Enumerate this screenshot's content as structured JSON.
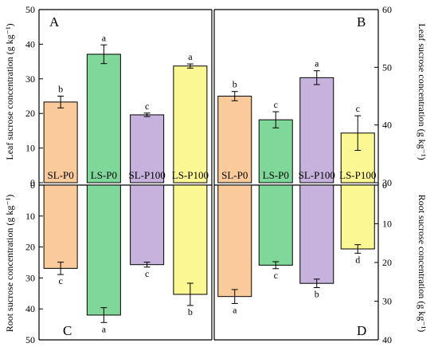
{
  "chart_data": {
    "type": "bar",
    "categories": [
      "SL-P0",
      "LS-P0",
      "SL-P100",
      "LS-P100"
    ],
    "colors": [
      "#FACA9A",
      "#7FD89A",
      "#C6B2DC",
      "#FBF792"
    ],
    "panels": [
      {
        "id": "A",
        "label": "A",
        "position": "top-left",
        "measure": "leaf",
        "axis_side": "left",
        "ylabel": "Leaf sucrose concentration (g kg⁻¹)",
        "ylim": [
          0,
          50
        ],
        "ticks": [
          0,
          10,
          20,
          30,
          40,
          50
        ],
        "values": [
          23.3,
          37.1,
          19.6,
          33.7
        ],
        "errors": [
          1.7,
          2.7,
          0.5,
          0.6
        ],
        "letters": [
          "b",
          "a",
          "c",
          "a"
        ]
      },
      {
        "id": "B",
        "label": "B",
        "position": "top-right",
        "measure": "leaf",
        "axis_side": "right",
        "ylabel": "Leaf sucrose concentration (g kg⁻¹)",
        "ylim": [
          30,
          60
        ],
        "ticks": [
          30,
          40,
          50,
          60
        ],
        "values": [
          45.0,
          40.9,
          48.2,
          38.6
        ],
        "errors": [
          0.8,
          1.4,
          1.2,
          3.0
        ],
        "letters": [
          "b",
          "c",
          "a",
          "c"
        ]
      },
      {
        "id": "C",
        "label": "C",
        "position": "bottom-left",
        "measure": "root",
        "axis_side": "left",
        "ylabel": "Root sucrose concentration (g kg⁻¹)",
        "ylim": [
          0,
          50
        ],
        "ticks": [
          0,
          10,
          20,
          30,
          40,
          50
        ],
        "values": [
          26.9,
          42.0,
          25.7,
          35.3
        ],
        "errors": [
          2.0,
          2.4,
          0.8,
          3.6
        ],
        "letters": [
          "c",
          "a",
          "c",
          "b"
        ]
      },
      {
        "id": "D",
        "label": "D",
        "position": "bottom-right",
        "measure": "root",
        "axis_side": "right",
        "ylabel": "Root sucrose concentration (g kg⁻¹)",
        "ylim": [
          0,
          40
        ],
        "ticks": [
          0,
          10,
          20,
          30,
          40
        ],
        "values": [
          28.8,
          20.7,
          25.4,
          16.5
        ],
        "errors": [
          1.8,
          0.9,
          1.1,
          1.1
        ],
        "letters": [
          "a",
          "c",
          "b",
          "d"
        ]
      }
    ]
  }
}
